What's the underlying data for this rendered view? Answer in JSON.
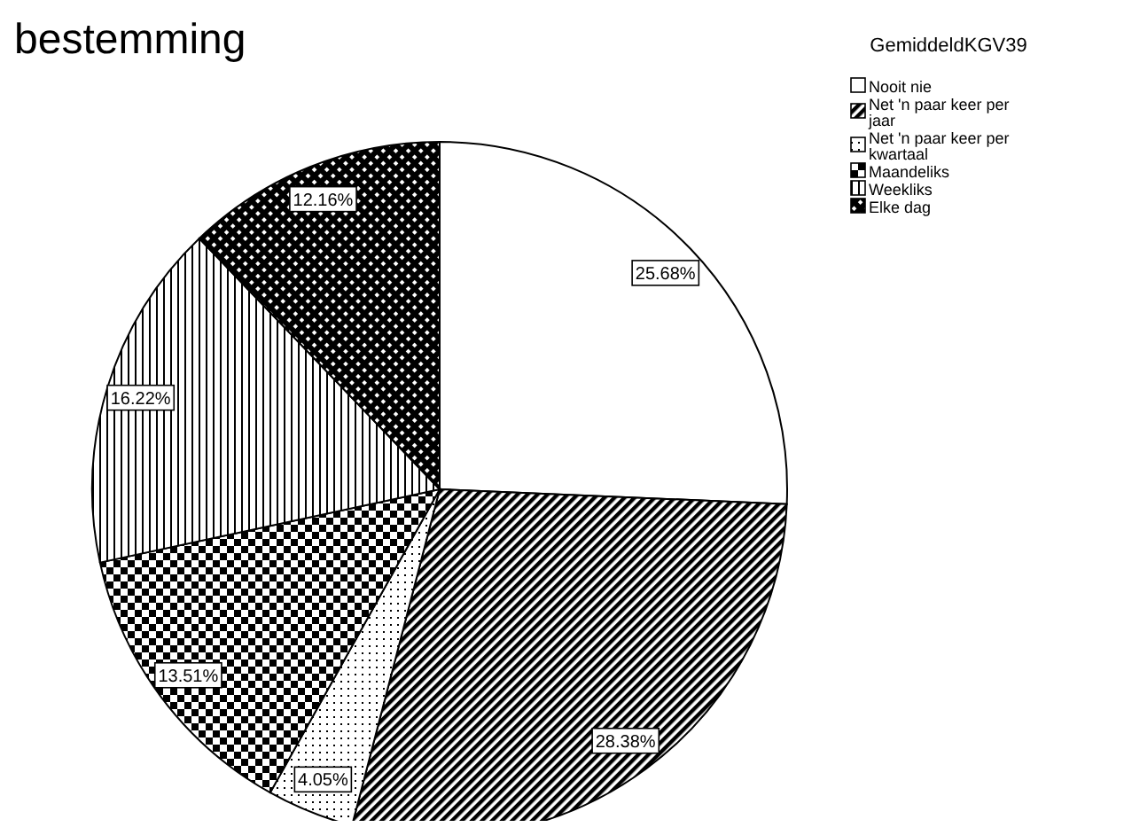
{
  "chart_data": {
    "type": "pie",
    "title": "bestemming",
    "legend_title": "GemiddeldKGV39",
    "legend": "top right",
    "categories": [
      "Nooit nie",
      "Net 'n paar keer per jaar",
      "Net 'n paar keer per kwartaal",
      "Maandeliks",
      "Weekliks",
      "Elke dag"
    ],
    "values": [
      25.68,
      28.38,
      4.05,
      13.51,
      16.22,
      12.16
    ],
    "value_labels": [
      "25.68%",
      "28.38%",
      "4.05%",
      "13.51%",
      "16.22%",
      "12.16%"
    ]
  }
}
